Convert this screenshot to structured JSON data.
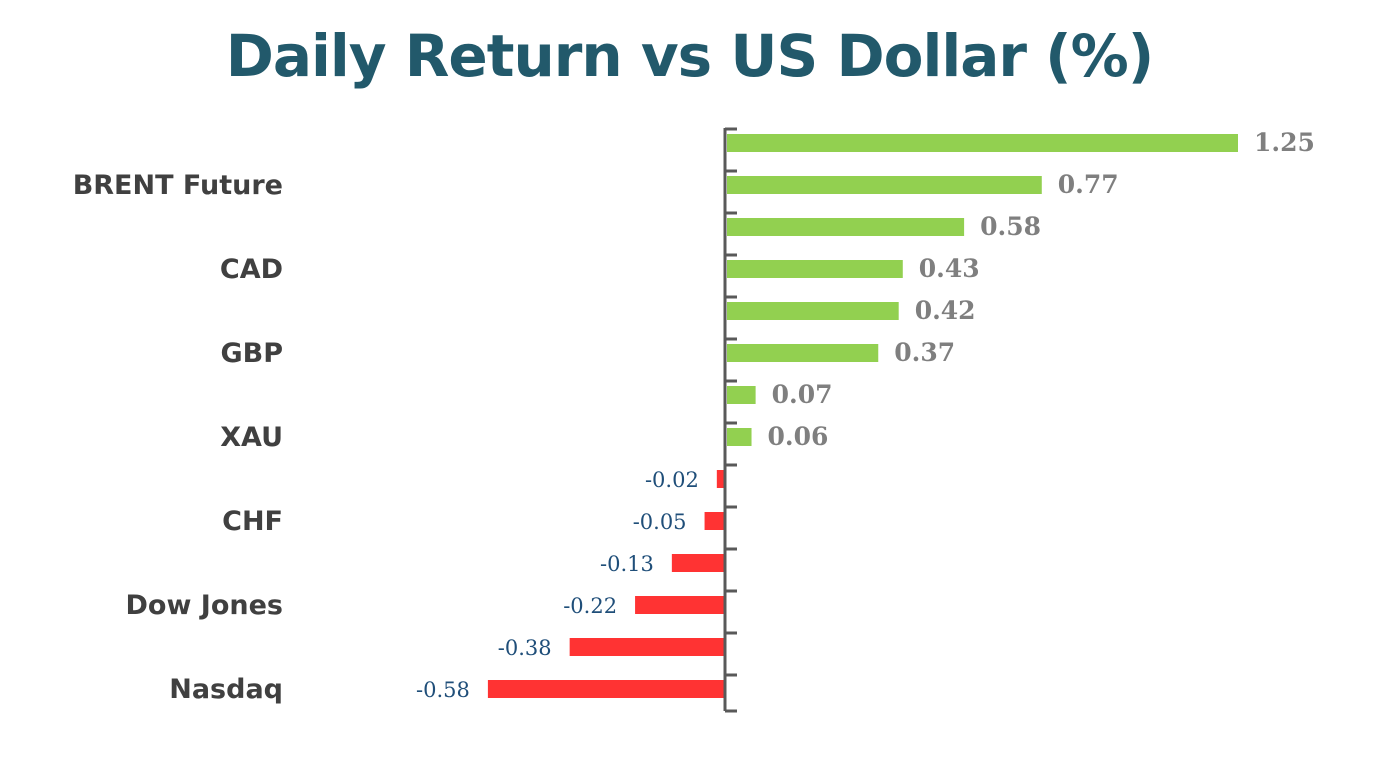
{
  "chart_data": {
    "type": "bar",
    "orientation": "horizontal",
    "title": "Daily Return vs US Dollar (%)",
    "categories": [
      "",
      "BRENT Future",
      "",
      "CAD",
      "",
      "GBP",
      "",
      "XAU",
      "",
      "CHF",
      "",
      "Dow Jones",
      "",
      "Nasdaq"
    ],
    "values": [
      1.25,
      0.77,
      0.58,
      0.43,
      0.42,
      0.37,
      0.07,
      0.06,
      -0.02,
      -0.05,
      -0.13,
      -0.22,
      -0.38,
      -0.58
    ],
    "data_labels": [
      "1.25",
      "0.77",
      "0.58",
      "0.43",
      "0.42",
      "0.37",
      "0.07",
      "0.06",
      "-0.02",
      "-0.05",
      "-0.13",
      "-0.22",
      "-0.38",
      "-0.58"
    ],
    "xlim": [
      -0.58,
      1.25
    ],
    "grid": false,
    "legend": "none"
  },
  "colors": {
    "title": "#22596b",
    "positive_bar": "#92d050",
    "negative_bar": "#ff3333",
    "positive_label": "#7f7f7f",
    "negative_label": "#1f4e79",
    "category_label": "#404040",
    "axis": "#595959"
  }
}
